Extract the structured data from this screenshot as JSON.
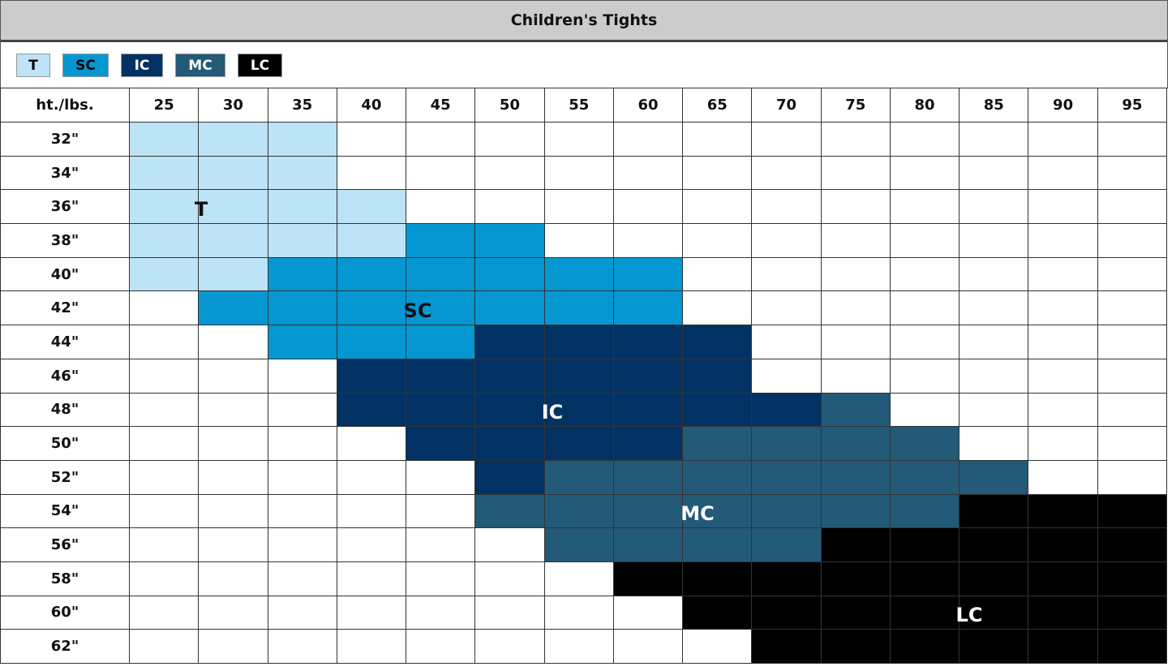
{
  "header": {
    "title": "Children's Tights"
  },
  "legend": [
    {
      "label": "T",
      "color": "#bde3f6",
      "text_color": "#000000"
    },
    {
      "label": "SC",
      "color": "#0597d2",
      "text_color": "#000000"
    },
    {
      "label": "IC",
      "color": "#023263",
      "text_color": "#ffffff"
    },
    {
      "label": "MC",
      "color": "#225a78",
      "text_color": "#ffffff"
    },
    {
      "label": "LC",
      "color": "#000000",
      "text_color": "#ffffff"
    }
  ],
  "table": {
    "corner": "ht./lbs.",
    "columns": [
      "25",
      "30",
      "35",
      "40",
      "45",
      "50",
      "55",
      "60",
      "65",
      "70",
      "75",
      "80",
      "85",
      "90",
      "95"
    ],
    "rows": [
      {
        "label": "32\"",
        "cells": [
          "T",
          "T",
          "T",
          null,
          null,
          null,
          null,
          null,
          null,
          null,
          null,
          null,
          null,
          null,
          null
        ]
      },
      {
        "label": "34\"",
        "cells": [
          "T",
          "T",
          "T",
          null,
          null,
          null,
          null,
          null,
          null,
          null,
          null,
          null,
          null,
          null,
          null
        ]
      },
      {
        "label": "36\"",
        "cells": [
          "T",
          "T",
          "T",
          "T",
          null,
          null,
          null,
          null,
          null,
          null,
          null,
          null,
          null,
          null,
          null
        ]
      },
      {
        "label": "38\"",
        "cells": [
          "T",
          "T",
          "T",
          "T",
          "SC",
          "SC",
          null,
          null,
          null,
          null,
          null,
          null,
          null,
          null,
          null
        ]
      },
      {
        "label": "40\"",
        "cells": [
          "T",
          "T",
          "SC",
          "SC",
          "SC",
          "SC",
          "SC",
          "SC",
          null,
          null,
          null,
          null,
          null,
          null,
          null
        ]
      },
      {
        "label": "42\"",
        "cells": [
          null,
          "SC",
          "SC",
          "SC",
          "SC",
          "SC",
          "SC",
          "SC",
          null,
          null,
          null,
          null,
          null,
          null,
          null
        ]
      },
      {
        "label": "44\"",
        "cells": [
          null,
          null,
          "SC",
          "SC",
          "SC",
          "IC",
          "IC",
          "IC",
          "IC",
          null,
          null,
          null,
          null,
          null,
          null
        ]
      },
      {
        "label": "46\"",
        "cells": [
          null,
          null,
          null,
          "IC",
          "IC",
          "IC",
          "IC",
          "IC",
          "IC",
          null,
          null,
          null,
          null,
          null,
          null
        ]
      },
      {
        "label": "48\"",
        "cells": [
          null,
          null,
          null,
          "IC",
          "IC",
          "IC",
          "IC",
          "IC",
          "IC",
          "IC",
          "MC",
          null,
          null,
          null,
          null
        ]
      },
      {
        "label": "50\"",
        "cells": [
          null,
          null,
          null,
          null,
          "IC",
          "IC",
          "IC",
          "IC",
          "MC",
          "MC",
          "MC",
          "MC",
          null,
          null,
          null
        ]
      },
      {
        "label": "52\"",
        "cells": [
          null,
          null,
          null,
          null,
          null,
          "IC",
          "MC",
          "MC",
          "MC",
          "MC",
          "MC",
          "MC",
          "MC",
          null,
          null
        ]
      },
      {
        "label": "54\"",
        "cells": [
          null,
          null,
          null,
          null,
          null,
          "MC",
          "MC",
          "MC",
          "MC",
          "MC",
          "MC",
          "MC",
          "LC",
          "LC",
          "LC"
        ]
      },
      {
        "label": "56\"",
        "cells": [
          null,
          null,
          null,
          null,
          null,
          null,
          "MC",
          "MC",
          "MC",
          "MC",
          "LC",
          "LC",
          "LC",
          "LC",
          "LC"
        ]
      },
      {
        "label": "58\"",
        "cells": [
          null,
          null,
          null,
          null,
          null,
          null,
          null,
          "LC",
          "LC",
          "LC",
          "LC",
          "LC",
          "LC",
          "LC",
          "LC"
        ]
      },
      {
        "label": "60\"",
        "cells": [
          null,
          null,
          null,
          null,
          null,
          null,
          null,
          null,
          "LC",
          "LC",
          "LC",
          "LC",
          "LC",
          "LC",
          "LC"
        ]
      },
      {
        "label": "62\"",
        "cells": [
          null,
          null,
          null,
          null,
          null,
          null,
          null,
          null,
          null,
          "LC",
          "LC",
          "LC",
          "LC",
          "LC",
          "LC"
        ]
      }
    ]
  }
}
